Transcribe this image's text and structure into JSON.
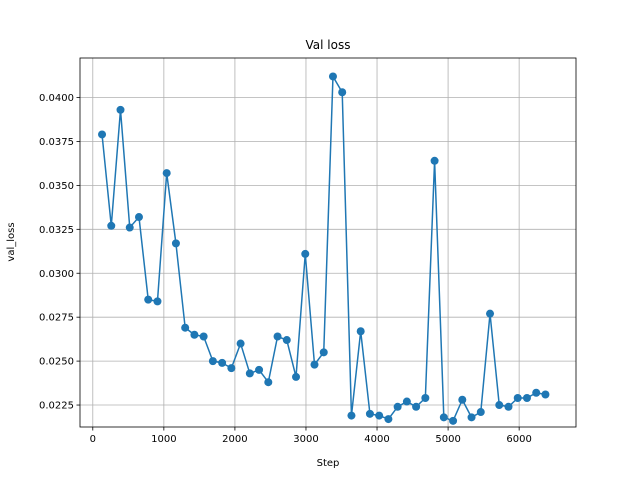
{
  "chart_data": {
    "type": "line",
    "title": "Val loss",
    "xlabel": "Step",
    "ylabel": "val_loss",
    "xlim": [
      -180,
      6800
    ],
    "ylim": [
      0.02125,
      0.04225
    ],
    "grid": true,
    "legend": "none",
    "colors": {
      "series": "#1f77b4",
      "grid": "#b0b0b0",
      "axis": "#000000"
    },
    "x_ticks": [
      0,
      1000,
      2000,
      3000,
      4000,
      5000,
      6000
    ],
    "x_tick_labels": [
      "0",
      "1000",
      "2000",
      "3000",
      "4000",
      "5000",
      "6000"
    ],
    "y_ticks": [
      0.0225,
      0.025,
      0.0275,
      0.03,
      0.0325,
      0.035,
      0.0375,
      0.04
    ],
    "y_tick_labels": [
      "0.0225",
      "0.0250",
      "0.0275",
      "0.0300",
      "0.0325",
      "0.0350",
      "0.0375",
      "0.0400"
    ],
    "series": [
      {
        "x": [
          130,
          260,
          390,
          520,
          650,
          780,
          910,
          1040,
          1170,
          1300,
          1430,
          1560,
          1690,
          1820,
          1950,
          2080,
          2210,
          2340,
          2470,
          2600,
          2730,
          2860,
          2990,
          3120,
          3250,
          3380,
          3510,
          3640,
          3770,
          3900,
          4030,
          4160,
          4290,
          4420,
          4550,
          4680,
          4810,
          4940,
          5070,
          5200,
          5330,
          5460,
          5590,
          5720,
          5850,
          5980,
          6110,
          6240,
          6370
        ],
        "y": [
          0.0379,
          0.0327,
          0.0393,
          0.0326,
          0.0332,
          0.0285,
          0.0284,
          0.0357,
          0.0317,
          0.0269,
          0.0265,
          0.0264,
          0.025,
          0.0249,
          0.0246,
          0.026,
          0.0243,
          0.0245,
          0.0238,
          0.0264,
          0.0262,
          0.0241,
          0.0311,
          0.0248,
          0.0255,
          0.0412,
          0.0403,
          0.0219,
          0.0267,
          0.022,
          0.0219,
          0.0217,
          0.0224,
          0.0227,
          0.0224,
          0.0229,
          0.0364,
          0.0218,
          0.0216,
          0.0228,
          0.0218,
          0.0221,
          0.0277,
          0.0225,
          0.0224,
          0.0229,
          0.0229,
          0.0232,
          0.0231
        ]
      }
    ]
  }
}
